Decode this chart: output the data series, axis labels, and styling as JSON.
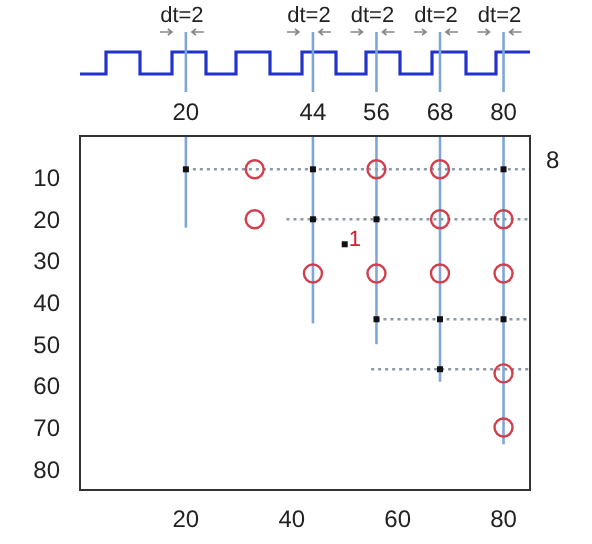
{
  "chart_data": {
    "type": "scatter",
    "xlim": [
      0,
      85
    ],
    "xticks": [
      20,
      40,
      60,
      80
    ],
    "ylim": [
      85,
      0
    ],
    "yticks": [
      10,
      20,
      30,
      40,
      50,
      60,
      70,
      80
    ],
    "x2lim": [
      0,
      85
    ],
    "x2ticks": [
      20,
      44,
      56,
      68,
      80
    ],
    "series": [
      {
        "type": "line",
        "color": "#7fa7d6",
        "line_style": "solid",
        "marker": "none",
        "x": [
          20,
          20
        ],
        "values": [
          0,
          22
        ]
      },
      {
        "type": "line",
        "color": "#7fa7d6",
        "line_style": "solid",
        "marker": "none",
        "x": [
          44,
          44
        ],
        "values": [
          0,
          45
        ]
      },
      {
        "type": "line",
        "color": "#7fa7d6",
        "line_style": "solid",
        "marker": "none",
        "x": [
          56,
          56
        ],
        "values": [
          0,
          50
        ]
      },
      {
        "type": "line",
        "color": "#7fa7d6",
        "line_style": "solid",
        "marker": "none",
        "x": [
          68,
          68
        ],
        "values": [
          0,
          59
        ]
      },
      {
        "type": "line",
        "color": "#7fa7d6",
        "line_style": "solid",
        "marker": "none",
        "x": [
          80,
          80
        ],
        "values": [
          0,
          74
        ]
      },
      {
        "type": "line",
        "color": "#8a9aa8",
        "line_style": "dotted",
        "marker": "none",
        "x": [
          20,
          85
        ],
        "values": [
          8,
          8
        ]
      },
      {
        "type": "line",
        "color": "#8a9aa8",
        "line_style": "dotted",
        "marker": "none",
        "x": [
          39,
          85
        ],
        "values": [
          20,
          20
        ]
      },
      {
        "type": "line",
        "color": "#8a9aa8",
        "line_style": "dotted",
        "marker": "none",
        "x": [
          56,
          85
        ],
        "values": [
          44,
          44
        ]
      },
      {
        "type": "line",
        "color": "#8a9aa8",
        "line_style": "dotted",
        "marker": "none",
        "x": [
          55,
          85
        ],
        "values": [
          56,
          56
        ]
      },
      {
        "type": "scatter",
        "color": "#111111",
        "marker": "square",
        "x": [
          20,
          44,
          80,
          44,
          56,
          56,
          68,
          80,
          68,
          50
        ],
        "values": [
          8,
          8,
          8,
          20,
          20,
          44,
          44,
          44,
          56,
          26
        ]
      },
      {
        "type": "scatter",
        "color": "#d0404f",
        "marker": "circle",
        "x": [
          33,
          56,
          68,
          33,
          68,
          80,
          44,
          56,
          68,
          80,
          80,
          80
        ],
        "values": [
          8,
          8,
          8,
          20,
          20,
          20,
          33,
          33,
          33,
          33,
          57,
          70
        ]
      }
    ],
    "annotations": [
      "dt=2",
      "dt=2",
      "dt=2",
      "dt=2",
      "dt=2",
      {
        "text": "1",
        "x": 50,
        "y": 26
      },
      "8"
    ]
  }
}
